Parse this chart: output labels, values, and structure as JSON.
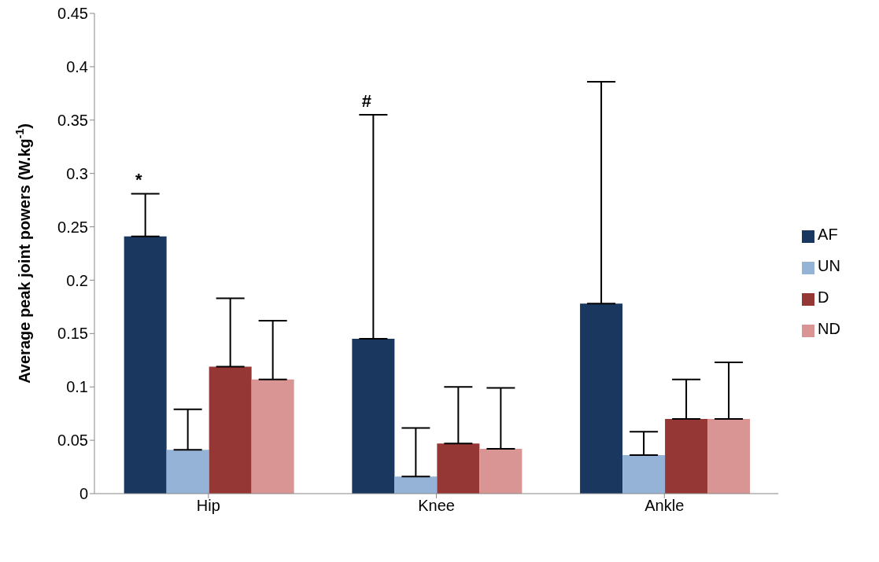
{
  "chart_data": {
    "type": "bar",
    "ylabel": "Average peak joint powers (W.kg$^{-1}$)",
    "categories": [
      "Hip",
      "Knee",
      "Ankle"
    ],
    "series": [
      {
        "name": "AF",
        "color": "#1a3760",
        "values": [
          0.241,
          0.145,
          0.178
        ],
        "errors": [
          [
            0.241,
            0.281
          ],
          [
            0.145,
            0.355
          ],
          [
            0.178,
            0.386
          ]
        ]
      },
      {
        "name": "UN",
        "color": "#95b3d7",
        "values": [
          0.041,
          0.016,
          0.036
        ],
        "errors": [
          [
            0.041,
            0.079
          ],
          [
            0.016,
            0.0615
          ],
          [
            0.036,
            0.058
          ]
        ]
      },
      {
        "name": "D",
        "color": "#953735",
        "values": [
          0.119,
          0.047,
          0.07
        ],
        "errors": [
          [
            0.119,
            0.183
          ],
          [
            0.047,
            0.1
          ],
          [
            0.07,
            0.107
          ]
        ]
      },
      {
        "name": "ND",
        "color": "#d99594",
        "values": [
          0.107,
          0.042,
          0.07
        ],
        "errors": [
          [
            0.107,
            0.162
          ],
          [
            0.042,
            0.099
          ],
          [
            0.07,
            0.123
          ]
        ]
      }
    ],
    "ylim": [
      0,
      0.45
    ],
    "yticks": [
      0,
      0.05,
      0.1,
      0.15,
      0.2,
      0.25,
      0.3,
      0.35,
      0.4,
      0.45
    ],
    "grid": false,
    "legend": "right",
    "annotations": [
      "*",
      "#"
    ]
  }
}
